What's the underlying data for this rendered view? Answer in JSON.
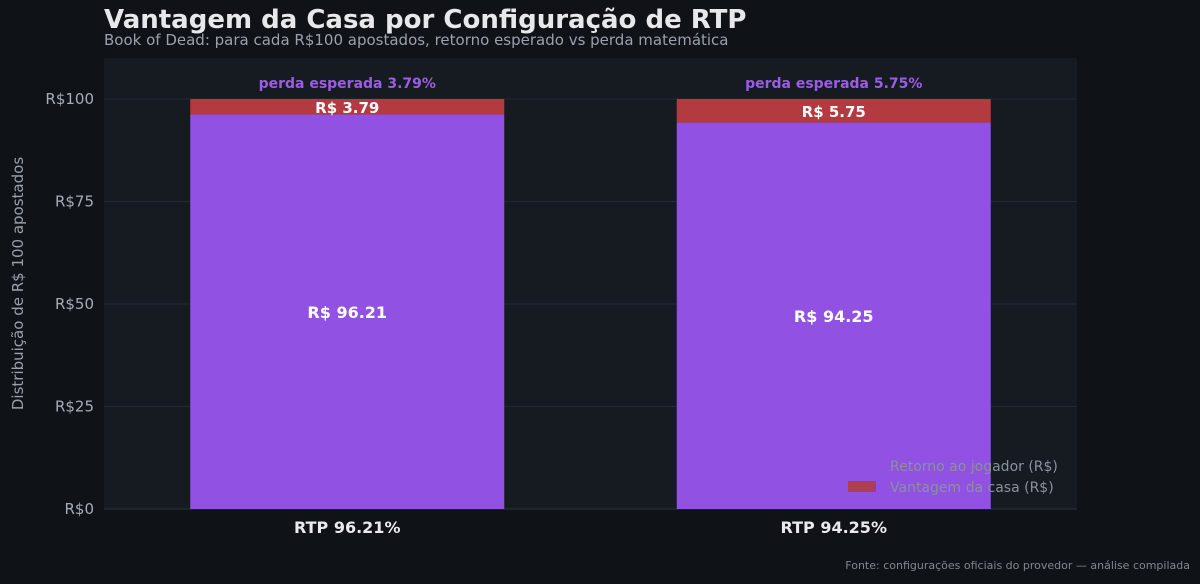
{
  "chart_data": {
    "type": "bar",
    "stacked": true,
    "title": "Vantagem da Casa por Configuração de RTP",
    "subtitle": "Book of Dead: para cada R$100 apostados, retorno esperado vs perda matemática",
    "ylabel": "Distribuição de R$ 100 apostados",
    "xlabel": "",
    "ylim": [
      0,
      110
    ],
    "yticks": [
      0,
      25,
      50,
      75,
      100
    ],
    "ytick_labels": [
      "R$0",
      "R$25",
      "R$50",
      "R$75",
      "R$100"
    ],
    "categories": [
      "RTP 96.21%",
      "RTP 94.25%"
    ],
    "series": [
      {
        "name": "Retorno ao jogador (R$)",
        "values": [
          96.21,
          94.25
        ],
        "color": "#9152e3",
        "labels": [
          "R$ 96.21",
          "R$ 94.25"
        ]
      },
      {
        "name": "Vantagem da casa (R$)",
        "values": [
          3.79,
          5.75
        ],
        "color": "#b33a3f",
        "labels": [
          "R$ 3.79",
          "R$ 5.75"
        ]
      }
    ],
    "annotations": [
      "perda esperada 3.79%",
      "perda esperada 5.75%"
    ],
    "grid": true,
    "legend_position": "bottom-right"
  },
  "footer": "Fonte: configurações oficiais do provedor — análise compilada",
  "colors": {
    "background": "#0f1217",
    "plot_background": "#161b21",
    "grid": "#242a32",
    "annotation": "#9b5de5"
  }
}
